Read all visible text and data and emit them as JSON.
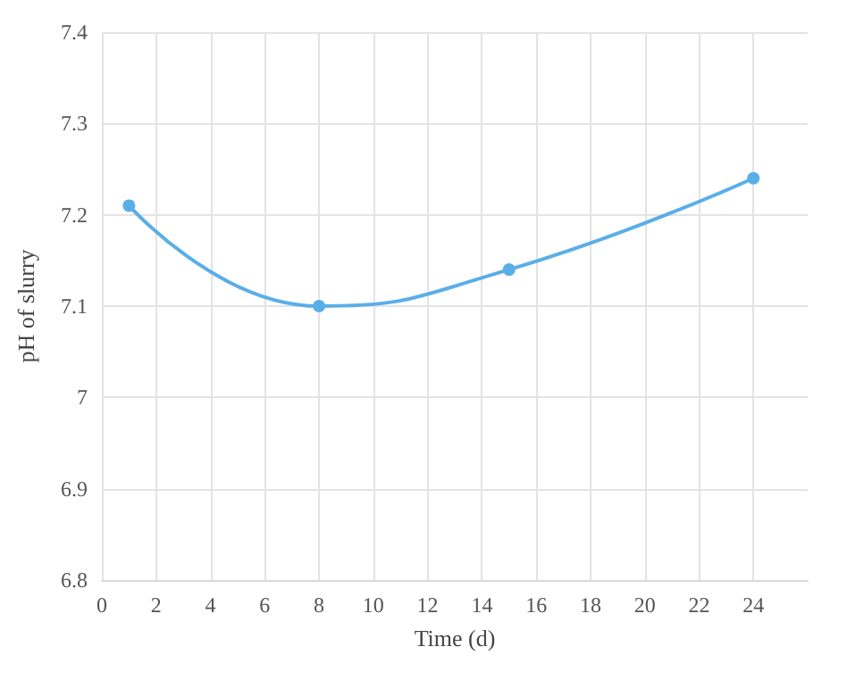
{
  "chart_data": {
    "type": "line",
    "xlabel": "Time (d)",
    "ylabel": "pH of slurry",
    "x": [
      1,
      8,
      15,
      24
    ],
    "series": [
      {
        "color": "#5aaee8",
        "values": [
          7.21,
          7.1,
          7.14,
          7.24
        ]
      }
    ],
    "xlim": [
      0,
      26
    ],
    "xticks": [
      0,
      2,
      4,
      6,
      8,
      10,
      12,
      14,
      16,
      18,
      20,
      22,
      24
    ],
    "ylim": [
      6.8,
      7.4
    ],
    "yticks": [
      6.8,
      6.9,
      7,
      7.1,
      7.2,
      7.3,
      7.4
    ],
    "grid": true,
    "marker": "circle",
    "line_style": "solid"
  }
}
